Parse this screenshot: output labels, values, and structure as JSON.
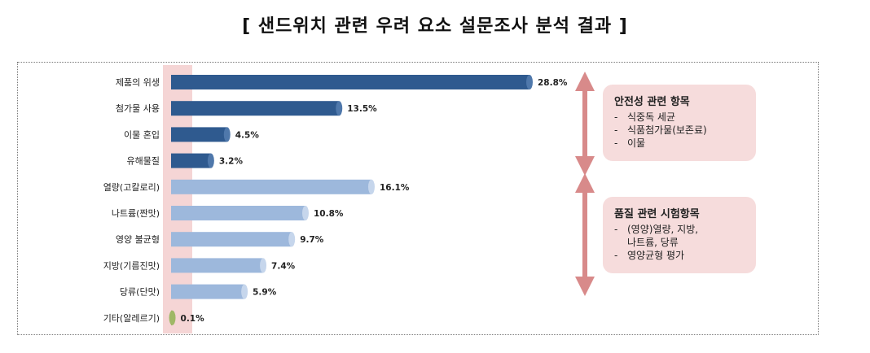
{
  "title": "[ 샌드위치 관련 우려 요소 설문조사 분석 결과 ]",
  "chart_data": {
    "type": "bar",
    "orientation": "horizontal",
    "categories": [
      "제품의 위생",
      "첨가물 사용",
      "이물 혼입",
      "유해물질",
      "열량(고칼로리)",
      "나트륨(짠맛)",
      "영양 불균형",
      "지방(기름진맛)",
      "당류(단맛)",
      "기타(알레르기)"
    ],
    "values": [
      28.8,
      13.5,
      4.5,
      3.2,
      16.1,
      10.8,
      9.7,
      7.4,
      5.9,
      0.1
    ],
    "value_labels": [
      "28.8%",
      "13.5%",
      "4.5%",
      "3.2%",
      "16.1%",
      "10.8%",
      "9.7%",
      "7.4%",
      "5.9%",
      "0.1%"
    ],
    "groups": [
      "safety",
      "safety",
      "safety",
      "safety",
      "quality",
      "quality",
      "quality",
      "quality",
      "quality",
      "other"
    ],
    "xlim": [
      0,
      28.8
    ],
    "colors": {
      "safety": "#2f5a8f",
      "quality": "#9db8dc",
      "other": "#77923c",
      "highlight": "#f5d5d5",
      "arrow": "#d88a8a"
    },
    "title": "",
    "xlabel": "",
    "ylabel": "",
    "legend": "none"
  },
  "annotations": {
    "safety": {
      "title": "안전성 관련 항목",
      "items": [
        "식중독 세균",
        "식품첨가물(보존료)",
        "이물"
      ]
    },
    "quality": {
      "title": "품질 관련 시험항목",
      "items": [
        "(영양)열량, 지방,\n나트륨, 당류",
        "영양균형 평가"
      ]
    }
  }
}
